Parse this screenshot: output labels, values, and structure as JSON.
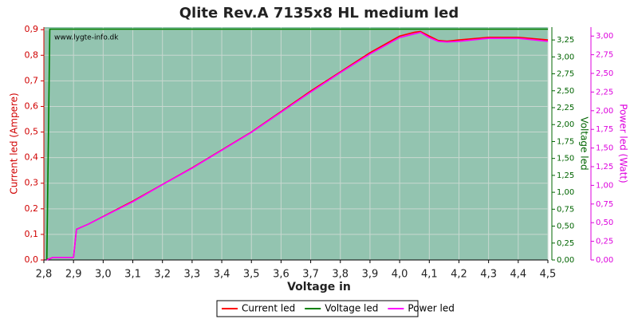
{
  "chart_data": {
    "type": "line",
    "title": "Qlite Rev.A 7135x8 HL medium led",
    "watermark": "www.lygte-info.dk",
    "xlabel": "Voltage in",
    "ylabel": "Current led (Ampere)",
    "y2label": "Voltage led",
    "y3label": "Power led (Watt)",
    "background": "#93c4b0",
    "grid": true,
    "legend": "bottom",
    "x": [
      2.81,
      2.82,
      2.83,
      2.9,
      2.91,
      2.95,
      3.0,
      3.1,
      3.2,
      3.3,
      3.4,
      3.5,
      3.6,
      3.7,
      3.8,
      3.9,
      4.0,
      4.05,
      4.07,
      4.1,
      4.13,
      4.16,
      4.2,
      4.3,
      4.4,
      4.5
    ],
    "series": [
      {
        "name": "Current led",
        "color": "#ff0000",
        "axis": "y",
        "values": [
          0.003,
          0.005,
          0.01,
          0.01,
          0.12,
          0.14,
          0.17,
          0.23,
          0.295,
          0.36,
          0.43,
          0.5,
          0.58,
          0.66,
          0.735,
          0.81,
          0.875,
          0.89,
          0.893,
          0.875,
          0.858,
          0.855,
          0.86,
          0.87,
          0.87,
          0.86
        ]
      },
      {
        "name": "Voltage led",
        "color": "#008000",
        "axis": "y2",
        "values": [
          0,
          3.41,
          3.41,
          3.41,
          3.41,
          3.41,
          3.41,
          3.41,
          3.41,
          3.41,
          3.41,
          3.41,
          3.41,
          3.41,
          3.41,
          3.41,
          3.41,
          3.41,
          3.41,
          3.41,
          3.41,
          3.41,
          3.41,
          3.41,
          3.41,
          3.41
        ]
      },
      {
        "name": "Power led",
        "color": "#ff00ff",
        "axis": "y3",
        "values": [
          0,
          0.017,
          0.034,
          0.034,
          0.41,
          0.48,
          0.58,
          0.78,
          1.01,
          1.23,
          1.47,
          1.71,
          1.98,
          2.25,
          2.51,
          2.76,
          2.98,
          3.03,
          3.05,
          2.98,
          2.93,
          2.92,
          2.93,
          2.97,
          2.97,
          2.93
        ]
      }
    ],
    "xlim": [
      2.8,
      4.5
    ],
    "xticks": [
      {
        "value": 2.8,
        "label": "2,8"
      },
      {
        "value": 2.9,
        "label": "2,9"
      },
      {
        "value": 3.0,
        "label": "3,0"
      },
      {
        "value": 3.1,
        "label": "3,1"
      },
      {
        "value": 3.2,
        "label": "3,2"
      },
      {
        "value": 3.3,
        "label": "3,3"
      },
      {
        "value": 3.4,
        "label": "3,4"
      },
      {
        "value": 3.5,
        "label": "3,5"
      },
      {
        "value": 3.6,
        "label": "3,6"
      },
      {
        "value": 3.7,
        "label": "3,7"
      },
      {
        "value": 3.8,
        "label": "3,8"
      },
      {
        "value": 3.9,
        "label": "3,9"
      },
      {
        "value": 4.0,
        "label": "4,0"
      },
      {
        "value": 4.1,
        "label": "4,1"
      },
      {
        "value": 4.2,
        "label": "4,2"
      },
      {
        "value": 4.3,
        "label": "4,3"
      },
      {
        "value": 4.4,
        "label": "4,4"
      },
      {
        "value": 4.5,
        "label": "4,5"
      }
    ],
    "ylim": [
      0,
      0.91
    ],
    "yticks": [
      {
        "value": 0,
        "label": "0,0"
      },
      {
        "value": 0.1,
        "label": "0,1"
      },
      {
        "value": 0.2,
        "label": "0,2"
      },
      {
        "value": 0.3,
        "label": "0,3"
      },
      {
        "value": 0.4,
        "label": "0,4"
      },
      {
        "value": 0.5,
        "label": "0,5"
      },
      {
        "value": 0.6,
        "label": "0,6"
      },
      {
        "value": 0.7,
        "label": "0,7"
      },
      {
        "value": 0.8,
        "label": "0,8"
      },
      {
        "value": 0.9,
        "label": "0,9"
      }
    ],
    "y2lim": [
      0,
      3.44
    ],
    "y2ticks": [
      {
        "value": 0,
        "label": "0,00"
      },
      {
        "value": 0.25,
        "label": "0,25"
      },
      {
        "value": 0.5,
        "label": "0,50"
      },
      {
        "value": 0.75,
        "label": "0,75"
      },
      {
        "value": 1,
        "label": "1,00"
      },
      {
        "value": 1.25,
        "label": "1,25"
      },
      {
        "value": 1.5,
        "label": "1,50"
      },
      {
        "value": 1.75,
        "label": "1,75"
      },
      {
        "value": 2,
        "label": "2,00"
      },
      {
        "value": 2.25,
        "label": "2,25"
      },
      {
        "value": 2.5,
        "label": "2,50"
      },
      {
        "value": 2.75,
        "label": "2,75"
      },
      {
        "value": 3,
        "label": "3,00"
      },
      {
        "value": 3.25,
        "label": "3,25"
      }
    ],
    "y3lim": [
      0,
      3.12
    ],
    "y3ticks": [
      {
        "value": 0,
        "label": "0,00"
      },
      {
        "value": 0.25,
        "label": "0,25"
      },
      {
        "value": 0.5,
        "label": "0,50"
      },
      {
        "value": 0.75,
        "label": "0,75"
      },
      {
        "value": 1,
        "label": "1,00"
      },
      {
        "value": 1.25,
        "label": "1,25"
      },
      {
        "value": 1.5,
        "label": "1,50"
      },
      {
        "value": 1.75,
        "label": "1,75"
      },
      {
        "value": 2,
        "label": "2,00"
      },
      {
        "value": 2.25,
        "label": "2,25"
      },
      {
        "value": 2.5,
        "label": "2,50"
      },
      {
        "value": 2.75,
        "label": "2,75"
      },
      {
        "value": 3,
        "label": "3,00"
      }
    ]
  }
}
